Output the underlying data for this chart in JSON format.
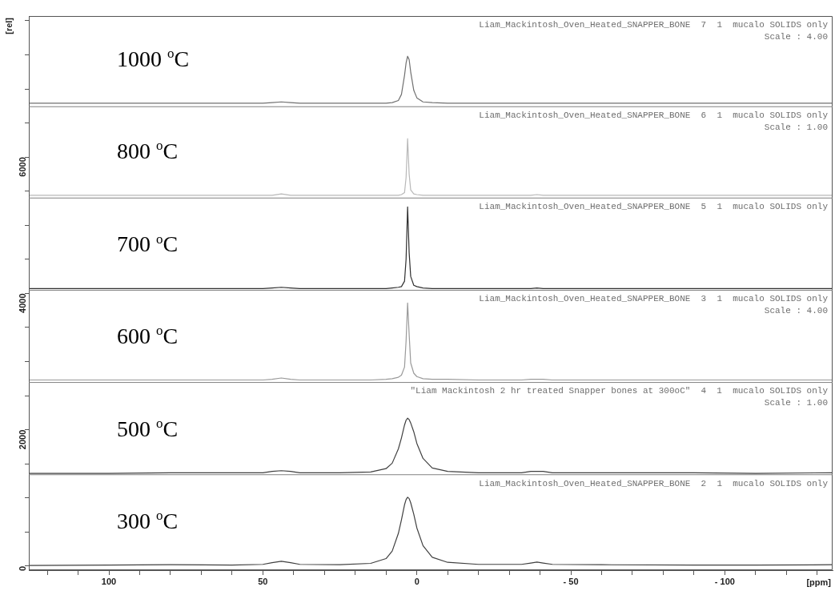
{
  "chart_data": {
    "type": "line",
    "xlabel": "[ppm]",
    "ylabel": "[rel]",
    "marker": "none",
    "legend": false,
    "grid": false,
    "x": [
      126,
      100,
      80,
      60,
      50,
      47,
      44,
      41,
      38,
      25,
      15,
      10,
      8,
      6,
      5,
      4,
      3.5,
      3,
      2.5,
      2,
      1,
      0,
      -2,
      -5,
      -10,
      -20,
      -34,
      -37,
      -39,
      -41,
      -44,
      -60,
      -90,
      -110,
      -135
    ],
    "xlim": [
      126,
      -135
    ],
    "xticks": [
      {
        "value": 120,
        "label": null
      },
      {
        "value": 110,
        "label": null
      },
      100,
      {
        "value": 90,
        "label": null
      },
      {
        "value": 80,
        "label": null
      },
      {
        "value": 70,
        "label": null
      },
      {
        "value": 60,
        "label": null
      },
      50,
      {
        "value": 40,
        "label": null
      },
      {
        "value": 30,
        "label": null
      },
      {
        "value": 20,
        "label": null
      },
      {
        "value": 10,
        "label": null
      },
      0,
      {
        "value": -10,
        "label": null
      },
      {
        "value": -20,
        "label": null
      },
      {
        "value": -30,
        "label": null
      },
      {
        "value": -40,
        "label": null
      },
      {
        "value": -50,
        "label": "- 50"
      },
      {
        "value": -60,
        "label": null
      },
      {
        "value": -70,
        "label": null
      },
      {
        "value": -80,
        "label": null
      },
      {
        "value": -90,
        "label": null
      },
      {
        "value": -100,
        "label": "- 100"
      },
      {
        "value": -110,
        "label": null
      },
      {
        "value": -120,
        "label": null
      },
      {
        "value": -130,
        "label": null
      }
    ],
    "ylim": [
      -60,
      8070
    ],
    "yticks": [
      0,
      {
        "value": 500,
        "label": null
      },
      {
        "value": 1000,
        "label": null
      },
      {
        "value": 1500,
        "label": null
      },
      2000,
      {
        "value": 2500,
        "label": null
      },
      {
        "value": 3000,
        "label": null
      },
      {
        "value": 3500,
        "label": null
      },
      4000,
      {
        "value": 4500,
        "label": null
      },
      {
        "value": 5000,
        "label": null
      },
      {
        "value": 5500,
        "label": null
      },
      6000,
      {
        "value": 6500,
        "label": null
      },
      {
        "value": 7000,
        "label": null
      },
      {
        "value": 7500,
        "label": null
      },
      {
        "value": 8000,
        "label": null
      }
    ],
    "series": [
      {
        "name": "1000 $^{o}$C",
        "color": "#707070",
        "values": [
          6790,
          6790,
          6790,
          6790,
          6790,
          6800,
          6810,
          6800,
          6790,
          6790,
          6790,
          6790,
          6800,
          6830,
          6920,
          7200,
          7380,
          7480,
          7430,
          7250,
          6980,
          6870,
          6810,
          6800,
          6790,
          6790,
          6790,
          6790,
          6790,
          6790,
          6790,
          6790,
          6790,
          6790,
          6790
        ]
      },
      {
        "name": "800 $^{o}$C",
        "color": "#b8b8b8",
        "values": [
          5440,
          5440,
          5440,
          5440,
          5440,
          5440,
          5460,
          5440,
          5440,
          5440,
          5440,
          5440,
          5440,
          5440,
          5450,
          5480,
          5700,
          6270,
          5750,
          5520,
          5460,
          5450,
          5440,
          5440,
          5440,
          5440,
          5440,
          5440,
          5450,
          5440,
          5440,
          5440,
          5440,
          5440,
          5440
        ]
      },
      {
        "name": "700 $^{o}$C",
        "color": "#303030",
        "values": [
          4070,
          4070,
          4070,
          4070,
          4070,
          4080,
          4090,
          4080,
          4070,
          4070,
          4070,
          4070,
          4080,
          4090,
          4100,
          4180,
          4500,
          5270,
          4600,
          4250,
          4120,
          4100,
          4080,
          4070,
          4070,
          4070,
          4070,
          4070,
          4080,
          4070,
          4070,
          4070,
          4070,
          4070,
          4070
        ]
      },
      {
        "name": "600 $^{o}$C",
        "color": "#9a9a9a",
        "values": [
          2730,
          2730,
          2730,
          2730,
          2730,
          2740,
          2760,
          2740,
          2730,
          2730,
          2730,
          2740,
          2750,
          2770,
          2800,
          2920,
          3300,
          3860,
          3400,
          2980,
          2830,
          2780,
          2750,
          2740,
          2740,
          2730,
          2730,
          2740,
          2740,
          2740,
          2730,
          2730,
          2730,
          2730,
          2730
        ]
      },
      {
        "name": "500 $^{o}$C",
        "color": "#404040",
        "values": [
          1360,
          1360,
          1370,
          1370,
          1370,
          1390,
          1400,
          1390,
          1370,
          1370,
          1380,
          1430,
          1510,
          1720,
          1880,
          2070,
          2140,
          2170,
          2150,
          2100,
          1970,
          1800,
          1580,
          1440,
          1390,
          1370,
          1370,
          1390,
          1390,
          1390,
          1370,
          1370,
          1370,
          1360,
          1370
        ]
      },
      {
        "name": "300 $^{o}$C",
        "color": "#404040",
        "values": [
          10,
          15,
          20,
          15,
          25,
          50,
          70,
          50,
          25,
          20,
          40,
          110,
          220,
          480,
          680,
          900,
          975,
          1010,
          990,
          930,
          760,
          560,
          300,
          130,
          55,
          25,
          25,
          45,
          60,
          45,
          25,
          20,
          15,
          15,
          20
        ]
      }
    ],
    "ref_lines": [
      {
        "axis": "y",
        "value": 6740,
        "color": "#808080"
      },
      {
        "axis": "y",
        "value": 5400,
        "color": "#808080"
      },
      {
        "axis": "y",
        "value": 4047,
        "color": "#808080"
      },
      {
        "axis": "y",
        "value": 2694,
        "color": "#808080"
      },
      {
        "axis": "y",
        "value": 1341,
        "color": "#808080"
      }
    ],
    "annotations": [
      "Liam_Mackintosh_Oven_Heated_SNAPPER_BONE  7  1  mucalo SOLIDS only",
      "Scale : 4.00",
      "Liam_Mackintosh_Oven_Heated_SNAPPER_BONE  6  1  mucalo SOLIDS only",
      "Scale : 1.00",
      "Liam_Mackintosh_Oven_Heated_SNAPPER_BONE  5  1  mucalo SOLIDS only",
      "Liam_Mackintosh_Oven_Heated_SNAPPER_BONE  3  1  mucalo SOLIDS only",
      "Scale : 4.00",
      "\"Liam Mackintosh 2 hr treated Snapper bones at 300oC\"  4  1  mucalo SOLIDS only",
      "Scale : 1.00",
      "Liam_Mackintosh_Oven_Heated_SNAPPER_BONE  2  1  mucalo SOLIDS only"
    ]
  }
}
